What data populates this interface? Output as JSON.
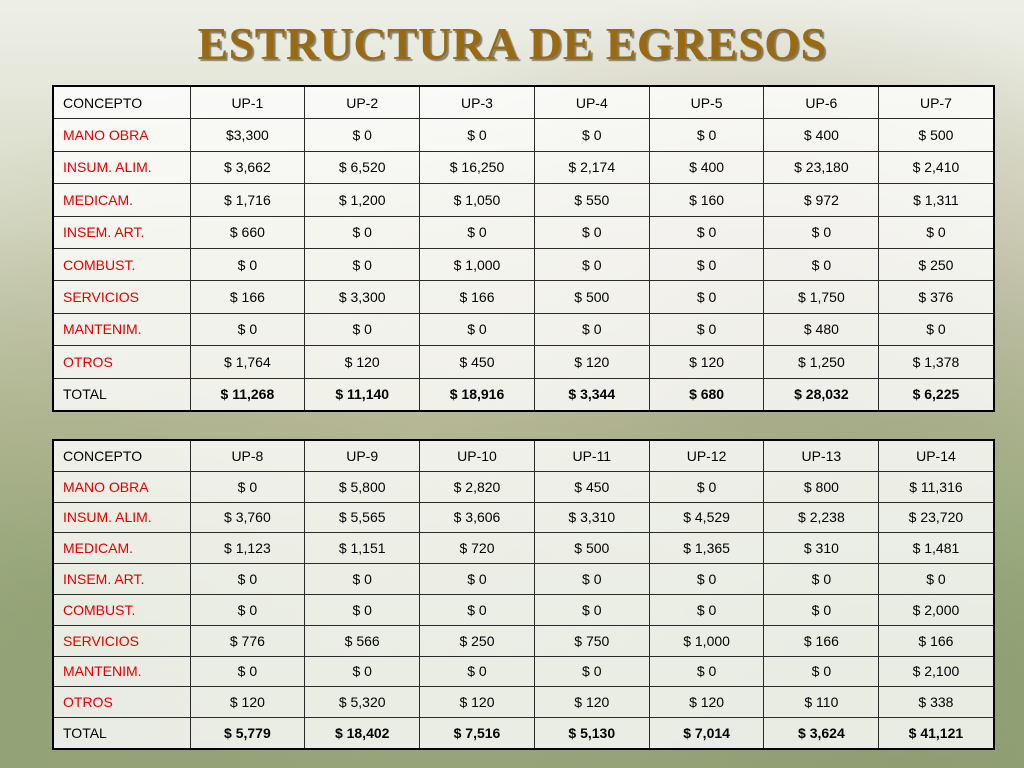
{
  "title": "ESTRUCTURA DE EGRESOS",
  "tables": [
    {
      "header": [
        "CONCEPTO",
        "UP-1",
        "UP-2",
        "UP-3",
        "UP-4",
        "UP-5",
        "UP-6",
        "UP-7"
      ],
      "rows": [
        {
          "label": "MANO OBRA",
          "values": [
            "$3,300",
            "$ 0",
            "$ 0",
            "$ 0",
            "$ 0",
            "$ 400",
            "$ 500"
          ]
        },
        {
          "label": "INSUM. ALIM.",
          "values": [
            "$ 3,662",
            "$ 6,520",
            "$ 16,250",
            "$ 2,174",
            "$ 400",
            "$ 23,180",
            "$ 2,410"
          ]
        },
        {
          "label": "MEDICAM.",
          "values": [
            "$ 1,716",
            "$ 1,200",
            "$ 1,050",
            "$ 550",
            "$ 160",
            "$ 972",
            "$ 1,311"
          ]
        },
        {
          "label": "INSEM. ART.",
          "values": [
            "$ 660",
            "$ 0",
            "$ 0",
            "$ 0",
            "$ 0",
            "$ 0",
            "$ 0"
          ]
        },
        {
          "label": "COMBUST.",
          "values": [
            "$ 0",
            "$ 0",
            "$ 1,000",
            "$ 0",
            "$ 0",
            "$ 0",
            "$ 250"
          ]
        },
        {
          "label": "SERVICIOS",
          "values": [
            "$ 166",
            "$ 3,300",
            "$ 166",
            "$ 500",
            "$ 0",
            "$ 1,750",
            "$ 376"
          ]
        },
        {
          "label": "MANTENIM.",
          "values": [
            "$ 0",
            "$ 0",
            "$ 0",
            "$ 0",
            "$ 0",
            "$ 480",
            "$ 0"
          ]
        },
        {
          "label": "OTROS",
          "values": [
            "$ 1,764",
            "$ 120",
            "$ 450",
            "$ 120",
            "$ 120",
            "$ 1,250",
            "$ 1,378"
          ]
        }
      ],
      "total": {
        "label": "TOTAL",
        "values": [
          "$ 11,268",
          "$ 11,140",
          "$ 18,916",
          "$ 3,344",
          "$ 680",
          "$ 28,032",
          "$ 6,225"
        ]
      }
    },
    {
      "header": [
        "CONCEPTO",
        "UP-8",
        "UP-9",
        "UP-10",
        "UP-11",
        "UP-12",
        "UP-13",
        "UP-14"
      ],
      "rows": [
        {
          "label": "MANO OBRA",
          "values": [
            "$ 0",
            "$ 5,800",
            "$ 2,820",
            "$ 450",
            "$ 0",
            "$ 800",
            "$ 11,316"
          ]
        },
        {
          "label": "INSUM. ALIM.",
          "values": [
            "$ 3,760",
            "$ 5,565",
            "$ 3,606",
            "$ 3,310",
            "$ 4,529",
            "$ 2,238",
            "$ 23,720"
          ]
        },
        {
          "label": "MEDICAM.",
          "values": [
            "$ 1,123",
            "$ 1,151",
            "$ 720",
            "$ 500",
            "$ 1,365",
            "$ 310",
            "$ 1,481"
          ]
        },
        {
          "label": "INSEM. ART.",
          "values": [
            "$ 0",
            "$ 0",
            "$ 0",
            "$ 0",
            "$ 0",
            "$ 0",
            "$ 0"
          ]
        },
        {
          "label": "COMBUST.",
          "values": [
            "$ 0",
            "$ 0",
            "$ 0",
            "$ 0",
            "$ 0",
            "$ 0",
            "$ 2,000"
          ]
        },
        {
          "label": "SERVICIOS",
          "values": [
            "$ 776",
            "$ 566",
            "$ 250",
            "$ 750",
            "$ 1,000",
            "$ 166",
            "$ 166"
          ]
        },
        {
          "label": "MANTENIM.",
          "values": [
            "$ 0",
            "$ 0",
            "$ 0",
            "$ 0",
            "$ 0",
            "$ 0",
            "$ 2,100"
          ]
        },
        {
          "label": "OTROS",
          "values": [
            "$ 120",
            "$ 5,320",
            "$ 120",
            "$ 120",
            "$ 120",
            "$ 110",
            "$ 338"
          ]
        }
      ],
      "total": {
        "label": "TOTAL",
        "values": [
          "$ 5,779",
          "$ 18,402",
          "$ 7,516",
          "$ 5,130",
          "$ 7,014",
          "$ 3,624",
          "$ 41,121"
        ]
      }
    }
  ]
}
